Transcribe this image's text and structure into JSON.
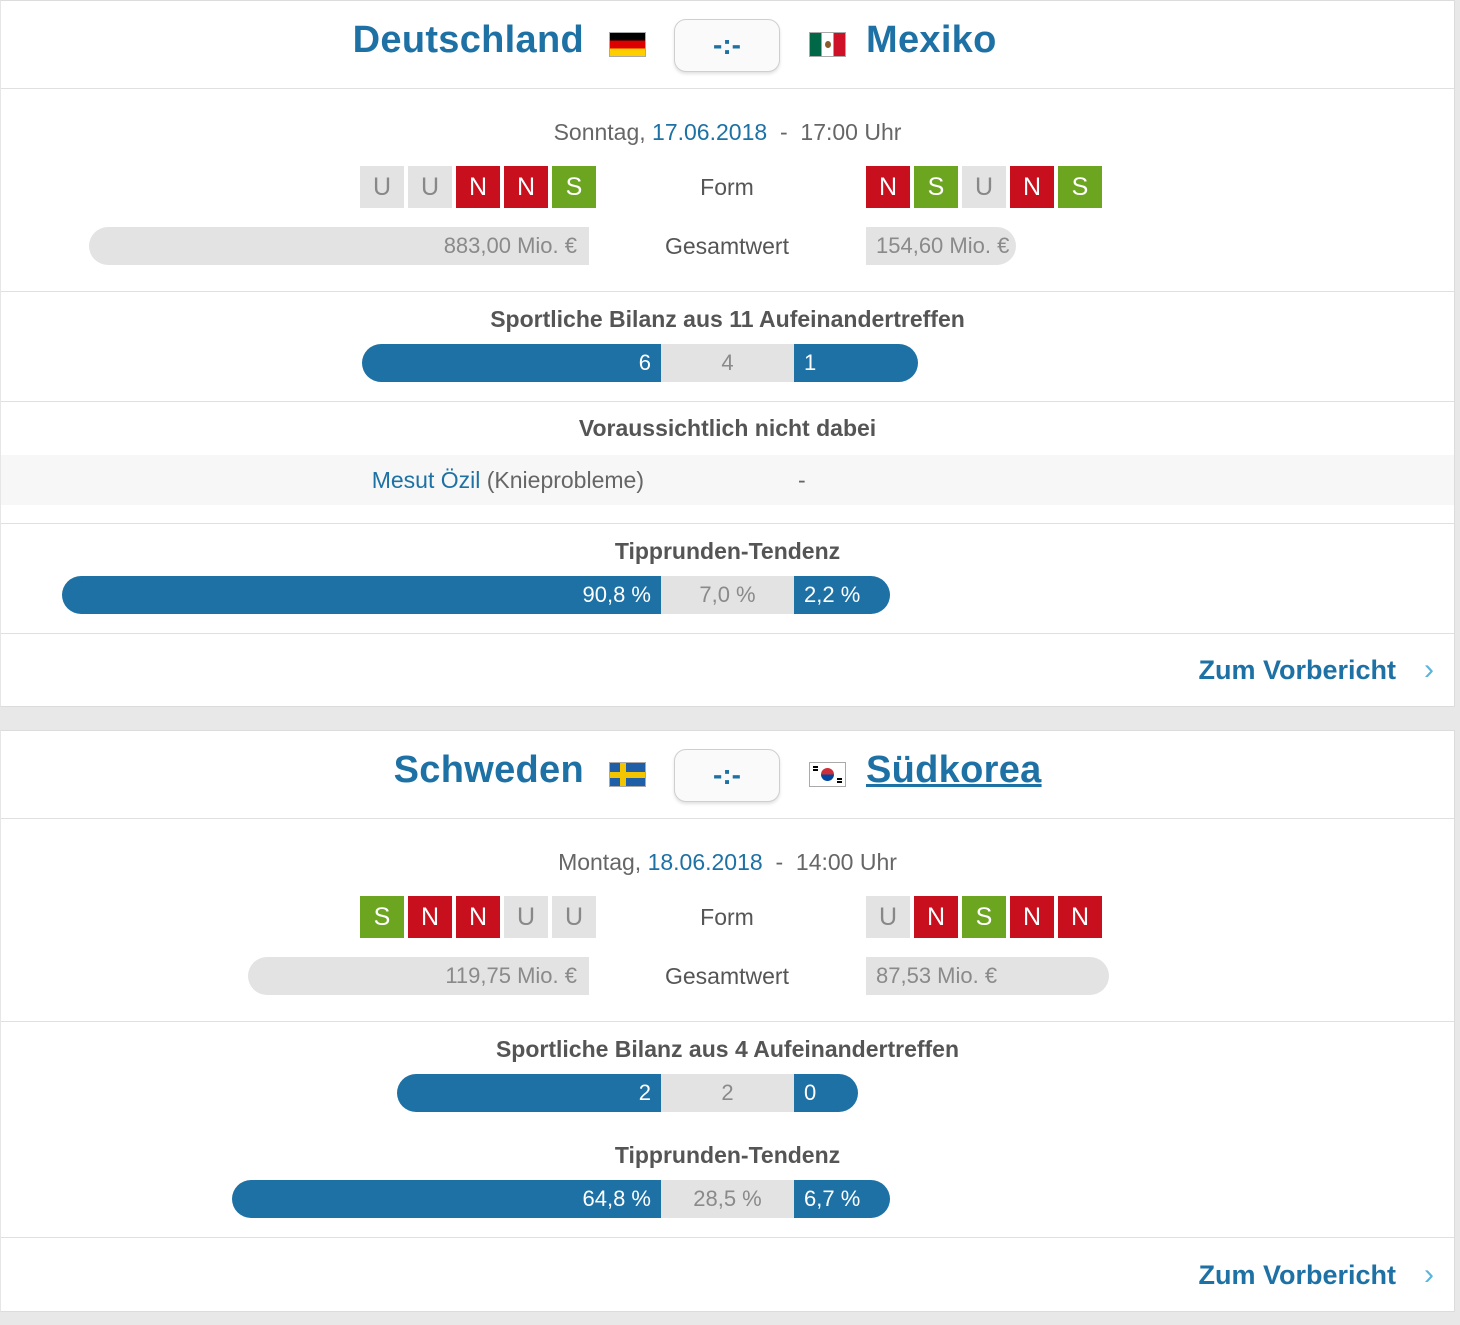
{
  "matches": [
    {
      "home": {
        "name": "Deutschland",
        "flag": "germany-flag",
        "form": [
          "U",
          "U",
          "N",
          "N",
          "S"
        ],
        "value": "883,00 Mio. €",
        "value_fraction": 1.0
      },
      "away": {
        "name": "Mexiko",
        "flag": "mexico-flag",
        "form": [
          "N",
          "S",
          "U",
          "N",
          "S"
        ],
        "value": "154,60 Mio. €",
        "value_fraction": 0.175
      },
      "score": "-:-",
      "date": {
        "weekday": "Sonntag,",
        "day": "17.06.2018",
        "sep": "-",
        "time": "17:00 Uhr"
      },
      "form_label": "Form",
      "value_label": "Gesamtwert",
      "h2h": {
        "title": "Sportliche Bilanz aus 11 Aufeinandertreffen",
        "home_wins": "6",
        "draws": "4",
        "away_wins": "1"
      },
      "absent": {
        "title": "Voraussichtlich nicht dabei",
        "home_player": "Mesut Özil",
        "home_reason": "(Knieprobleme)",
        "away": "-"
      },
      "tendency": {
        "title": "Tipprunden-Tendenz",
        "home": "90,8 %",
        "draw": "7,0 %",
        "away": "2,2 %",
        "home_pct": 90.8,
        "draw_pct": 7.0,
        "away_pct": 2.2
      },
      "preview_link": "Zum Vorbericht"
    },
    {
      "home": {
        "name": "Schweden",
        "flag": "sweden-flag",
        "form": [
          "S",
          "N",
          "N",
          "U",
          "U"
        ],
        "value": "119,75 Mio. €",
        "value_fraction": 0.64
      },
      "away": {
        "name": "Südkorea",
        "flag": "south-korea-flag",
        "form": [
          "U",
          "N",
          "S",
          "N",
          "N"
        ],
        "value": "87,53 Mio. €",
        "value_fraction": 0.46
      },
      "score": "-:-",
      "date": {
        "weekday": "Montag,",
        "day": "18.06.2018",
        "sep": "-",
        "time": "14:00 Uhr"
      },
      "form_label": "Form",
      "value_label": "Gesamtwert",
      "h2h": {
        "title": "Sportliche Bilanz aus 4 Aufeinandertreffen",
        "home_wins": "2",
        "draws": "2",
        "away_wins": "0"
      },
      "tendency": {
        "title": "Tipprunden-Tendenz",
        "home": "64,8 %",
        "draw": "28,5 %",
        "away": "6,7 %",
        "home_pct": 64.8,
        "draw_pct": 28.5,
        "away_pct": 6.7
      },
      "preview_link": "Zum Vorbericht"
    }
  ],
  "colors": {
    "brand_blue": "#1d71a5",
    "loss_red": "#c80f1e",
    "win_green": "#6ca620",
    "draw_grey": "#e3e3e3",
    "chevron": "#5ab4dc"
  }
}
